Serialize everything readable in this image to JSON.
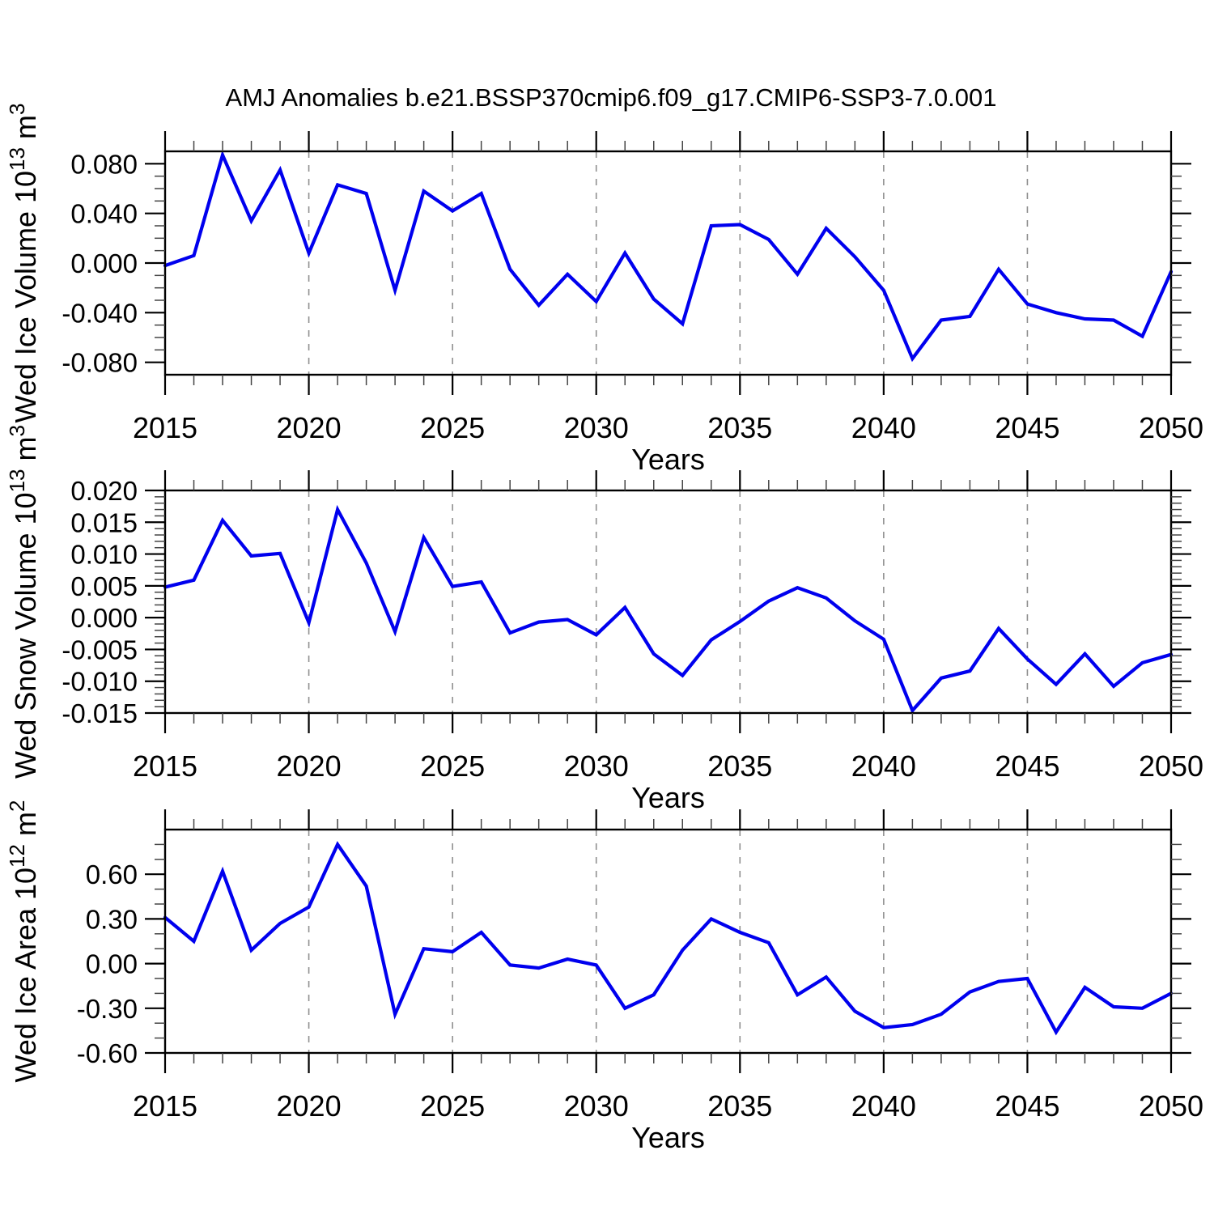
{
  "title": "AMJ Anomalies b.e21.BSSP370cmip6.f09_g17.CMIP6-SSP3-7.0.001",
  "x_axis": {
    "label": "Years",
    "start": 2015,
    "end": 2050,
    "major_step": 5,
    "minor_step": 1,
    "major_tick_labels": [
      "2015",
      "2020",
      "2025",
      "2030",
      "2035",
      "2040",
      "2045",
      "2050"
    ],
    "gridline_years": [
      2020,
      2025,
      2030,
      2035,
      2040,
      2045
    ]
  },
  "colors": {
    "line": "#0000ee",
    "gridline": "#8f8f8f",
    "axis": "#000000",
    "minor_tick": "#444444"
  },
  "chart_data": [
    {
      "type": "line",
      "name": "wed-ice-volume",
      "ylabel_text": "Wed Ice Volume 10^13 m^3",
      "ylabel_parts": [
        {
          "t": "Wed Ice Volume 10"
        },
        {
          "t": "13",
          "sup": true
        },
        {
          "t": " m"
        },
        {
          "t": "3",
          "sup": true
        }
      ],
      "ylim": [
        -0.09,
        0.09
      ],
      "yminor_step": 0.01,
      "yticks": [
        {
          "v": 0.08,
          "label": "0.080"
        },
        {
          "v": 0.04,
          "label": "0.040"
        },
        {
          "v": 0.0,
          "label": "0.000"
        },
        {
          "v": -0.04,
          "label": "-0.040"
        },
        {
          "v": -0.08,
          "label": "-0.080"
        }
      ],
      "x": [
        2015,
        2016,
        2017,
        2018,
        2019,
        2020,
        2021,
        2022,
        2023,
        2024,
        2025,
        2026,
        2027,
        2028,
        2029,
        2030,
        2031,
        2032,
        2033,
        2034,
        2035,
        2036,
        2037,
        2038,
        2039,
        2040,
        2041,
        2042,
        2043,
        2044,
        2045,
        2046,
        2047,
        2048,
        2049,
        2050
      ],
      "values": [
        -0.002,
        0.006,
        0.087,
        0.034,
        0.075,
        0.008,
        0.063,
        0.056,
        -0.022,
        0.058,
        0.042,
        0.056,
        -0.005,
        -0.034,
        -0.009,
        -0.031,
        0.008,
        -0.029,
        -0.049,
        0.03,
        0.031,
        0.019,
        -0.009,
        0.028,
        0.005,
        -0.022,
        -0.077,
        -0.046,
        -0.043,
        -0.005,
        -0.033,
        -0.04,
        -0.045,
        -0.046,
        -0.059,
        -0.007
      ]
    },
    {
      "type": "line",
      "name": "wed-snow-volume",
      "ylabel_text": "Wed Snow Volume 10^13 m^3",
      "ylabel_parts": [
        {
          "t": "Wed Snow Volume 10"
        },
        {
          "t": "13",
          "sup": true
        },
        {
          "t": " m"
        },
        {
          "t": "3",
          "sup": true
        }
      ],
      "ylim": [
        -0.015,
        0.02
      ],
      "yminor_step": 0.001,
      "yticks": [
        {
          "v": 0.02,
          "label": "0.020"
        },
        {
          "v": 0.015,
          "label": "0.015"
        },
        {
          "v": 0.01,
          "label": "0.010"
        },
        {
          "v": 0.005,
          "label": "0.005"
        },
        {
          "v": 0.0,
          "label": "0.000"
        },
        {
          "v": -0.005,
          "label": "-0.005"
        },
        {
          "v": -0.01,
          "label": "-0.010"
        },
        {
          "v": -0.015,
          "label": "-0.015"
        }
      ],
      "x": [
        2015,
        2016,
        2017,
        2018,
        2019,
        2020,
        2021,
        2022,
        2023,
        2024,
        2025,
        2026,
        2027,
        2028,
        2029,
        2030,
        2031,
        2032,
        2033,
        2034,
        2035,
        2036,
        2037,
        2038,
        2039,
        2040,
        2041,
        2042,
        2043,
        2044,
        2045,
        2046,
        2047,
        2048,
        2049,
        2050
      ],
      "values": [
        0.0048,
        0.0059,
        0.0153,
        0.0097,
        0.0101,
        -0.0008,
        0.017,
        0.0086,
        -0.0022,
        0.0126,
        0.0049,
        0.0056,
        -0.0024,
        -0.0007,
        -0.0003,
        -0.0027,
        0.0016,
        -0.0057,
        -0.0091,
        -0.0035,
        -0.0006,
        0.0026,
        0.0047,
        0.0031,
        -0.0005,
        -0.0034,
        -0.0146,
        -0.0095,
        -0.0084,
        -0.0017,
        -0.0065,
        -0.0105,
        -0.0057,
        -0.0108,
        -0.0071,
        -0.0058
      ]
    },
    {
      "type": "line",
      "name": "wed-ice-area",
      "ylabel_text": "Wed Ice Area 10^12 m^2",
      "ylabel_parts": [
        {
          "t": "Wed Ice Area 10"
        },
        {
          "t": "12",
          "sup": true
        },
        {
          "t": " m"
        },
        {
          "t": "2",
          "sup": true
        }
      ],
      "ylim": [
        -0.6,
        0.9
      ],
      "yminor_step": 0.1,
      "yticks": [
        {
          "v": 0.6,
          "label": "0.60"
        },
        {
          "v": 0.3,
          "label": "0.30"
        },
        {
          "v": 0.0,
          "label": "0.00"
        },
        {
          "v": -0.3,
          "label": "-0.30"
        },
        {
          "v": -0.6,
          "label": "-0.60"
        }
      ],
      "x": [
        2015,
        2016,
        2017,
        2018,
        2019,
        2020,
        2021,
        2022,
        2023,
        2024,
        2025,
        2026,
        2027,
        2028,
        2029,
        2030,
        2031,
        2032,
        2033,
        2034,
        2035,
        2036,
        2037,
        2038,
        2039,
        2040,
        2041,
        2042,
        2043,
        2044,
        2045,
        2046,
        2047,
        2048,
        2049,
        2050
      ],
      "values": [
        0.31,
        0.15,
        0.62,
        0.09,
        0.27,
        0.38,
        0.8,
        0.52,
        -0.34,
        0.1,
        0.08,
        0.21,
        -0.01,
        -0.03,
        0.03,
        -0.01,
        -0.3,
        -0.21,
        0.09,
        0.3,
        0.21,
        0.14,
        -0.21,
        -0.09,
        -0.32,
        -0.43,
        -0.41,
        -0.34,
        -0.19,
        -0.12,
        -0.1,
        -0.46,
        -0.16,
        -0.29,
        -0.3,
        -0.2
      ]
    }
  ]
}
